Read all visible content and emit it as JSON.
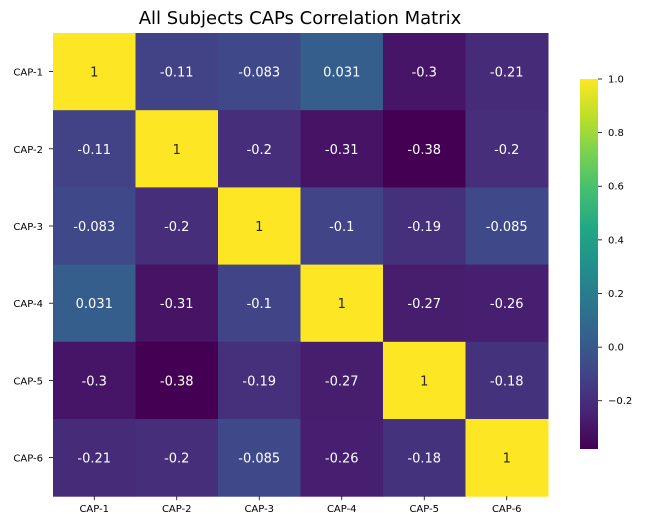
{
  "chart_data": {
    "type": "heatmap",
    "title": "All Subjects CAPs Correlation Matrix",
    "xlabel": "",
    "ylabel": "",
    "x_labels": [
      "CAP-1",
      "CAP-2",
      "CAP-3",
      "CAP-4",
      "CAP-5",
      "CAP-6"
    ],
    "y_labels": [
      "CAP-1",
      "CAP-2",
      "CAP-3",
      "CAP-4",
      "CAP-5",
      "CAP-6"
    ],
    "values": [
      [
        1,
        -0.11,
        -0.083,
        0.031,
        -0.3,
        -0.21
      ],
      [
        -0.11,
        1,
        -0.2,
        -0.31,
        -0.38,
        -0.2
      ],
      [
        -0.083,
        -0.2,
        1,
        -0.1,
        -0.19,
        -0.085
      ],
      [
        0.031,
        -0.31,
        -0.1,
        1,
        -0.27,
        -0.26
      ],
      [
        -0.3,
        -0.38,
        -0.19,
        -0.27,
        1,
        -0.18
      ],
      [
        -0.21,
        -0.2,
        -0.085,
        -0.26,
        -0.18,
        1
      ]
    ],
    "annotations": [
      [
        "1",
        "-0.11",
        "-0.083",
        "0.031",
        "-0.3",
        "-0.21"
      ],
      [
        "-0.11",
        "1",
        "-0.2",
        "-0.31",
        "-0.38",
        "-0.2"
      ],
      [
        "-0.083",
        "-0.2",
        "1",
        "-0.1",
        "-0.19",
        "-0.085"
      ],
      [
        "0.031",
        "-0.31",
        "-0.1",
        "1",
        "-0.27",
        "-0.26"
      ],
      [
        "-0.3",
        "-0.38",
        "-0.19",
        "-0.27",
        "1",
        "-0.18"
      ],
      [
        "-0.21",
        "-0.2",
        "-0.085",
        "-0.26",
        "-0.18",
        "1"
      ]
    ],
    "colormap": "viridis",
    "vmin": -0.38,
    "vmax": 1.0,
    "colorbar": {
      "ticks": [
        1.0,
        0.8,
        0.6,
        0.4,
        0.2,
        0.0,
        -0.2
      ],
      "tick_labels": [
        "1.0",
        "0.8",
        "0.6",
        "0.4",
        "0.2",
        "0.0",
        "−0.2"
      ],
      "placement": "right"
    }
  }
}
